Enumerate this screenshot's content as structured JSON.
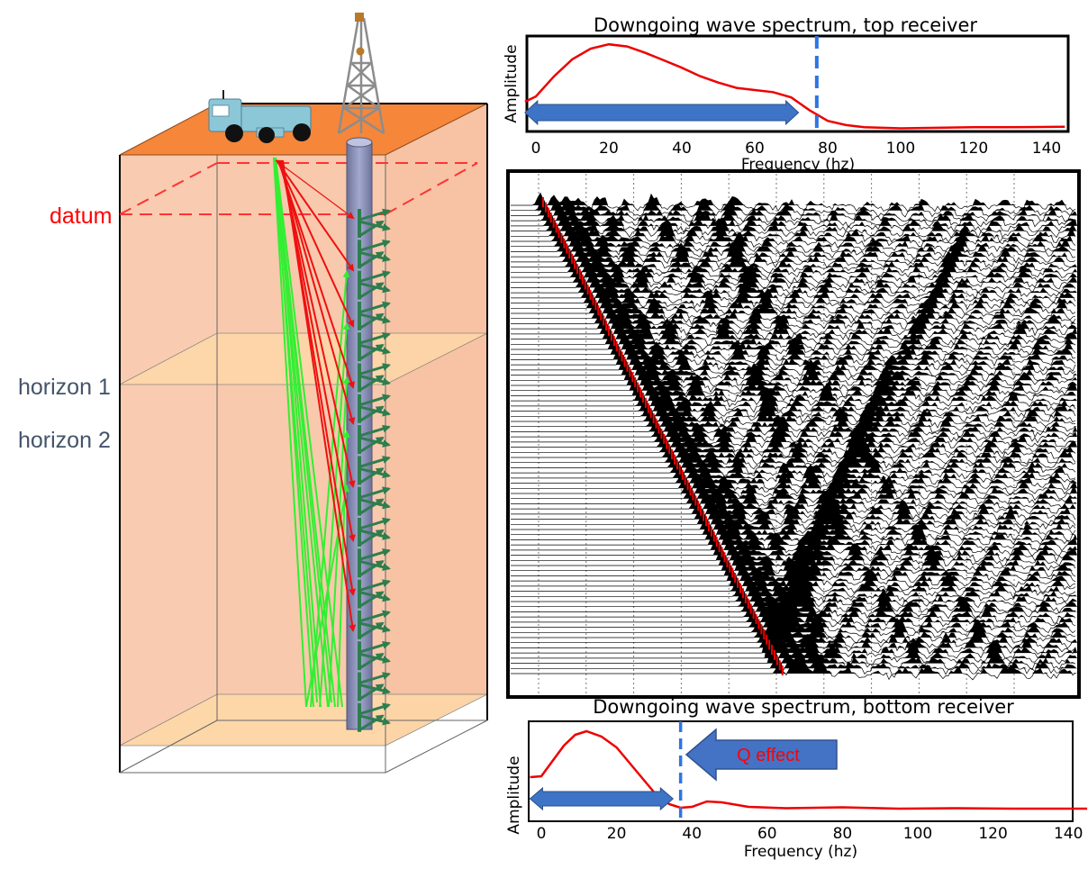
{
  "labels": {
    "datum": "datum",
    "horizon1": "horizon 1",
    "horizon2": "horizon 2"
  },
  "top_spectrum": {
    "title": "Downgoing wave spectrum, top receiver",
    "ylabel": "Amplitude",
    "xlabel": "Frequency (hz)",
    "xticks": [
      "0",
      "20",
      "40",
      "60",
      "80",
      "100",
      "120",
      "140"
    ],
    "cutoff_hz": 77,
    "band_hz": [
      -3,
      72
    ],
    "curve": [
      [
        -3,
        0.28
      ],
      [
        0,
        0.33
      ],
      [
        5,
        0.52
      ],
      [
        10,
        0.68
      ],
      [
        15,
        0.78
      ],
      [
        20,
        0.82
      ],
      [
        25,
        0.8
      ],
      [
        30,
        0.74
      ],
      [
        35,
        0.67
      ],
      [
        40,
        0.6
      ],
      [
        45,
        0.52
      ],
      [
        50,
        0.46
      ],
      [
        55,
        0.41
      ],
      [
        60,
        0.39
      ],
      [
        65,
        0.37
      ],
      [
        70,
        0.32
      ],
      [
        75,
        0.2
      ],
      [
        80,
        0.1
      ],
      [
        85,
        0.06
      ],
      [
        90,
        0.04
      ],
      [
        100,
        0.03
      ],
      [
        110,
        0.035
      ],
      [
        120,
        0.04
      ],
      [
        130,
        0.04
      ],
      [
        145,
        0.045
      ]
    ]
  },
  "bottom_spectrum": {
    "title": "Downgoing wave spectrum, bottom receiver",
    "ylabel": "Amplitude",
    "xlabel": "Frequency (hz)",
    "xticks": [
      "0",
      "20",
      "40",
      "60",
      "80",
      "100",
      "120",
      "140"
    ],
    "cutoff_hz": 37,
    "band_hz": [
      -3,
      35
    ],
    "annotation": "Q effect",
    "curve": [
      [
        -3,
        0.37
      ],
      [
        0,
        0.38
      ],
      [
        3,
        0.55
      ],
      [
        6,
        0.72
      ],
      [
        9,
        0.84
      ],
      [
        12,
        0.88
      ],
      [
        16,
        0.82
      ],
      [
        20,
        0.7
      ],
      [
        25,
        0.45
      ],
      [
        30,
        0.2
      ],
      [
        34,
        0.07
      ],
      [
        37,
        0.03
      ],
      [
        40,
        0.04
      ],
      [
        44,
        0.1
      ],
      [
        48,
        0.09
      ],
      [
        55,
        0.04
      ],
      [
        65,
        0.025
      ],
      [
        80,
        0.035
      ],
      [
        95,
        0.02
      ],
      [
        110,
        0.025
      ],
      [
        125,
        0.02
      ],
      [
        145,
        0.02
      ]
    ]
  },
  "colors": {
    "ground": "#f5863a",
    "earth": "#f8c6a8",
    "horizon": "#ffd9a8",
    "ray_green": "#33ee33",
    "ray_red": "#ee1111",
    "well": "#8c93b9",
    "geophone": "#2e7d4f",
    "spectrum": "#ee0000",
    "cutoff": "#2f74e3",
    "band": "#3e74c6",
    "truck": "#8cc7d8"
  },
  "seismic": {
    "trace_count": 92,
    "grid_lines": 11
  }
}
